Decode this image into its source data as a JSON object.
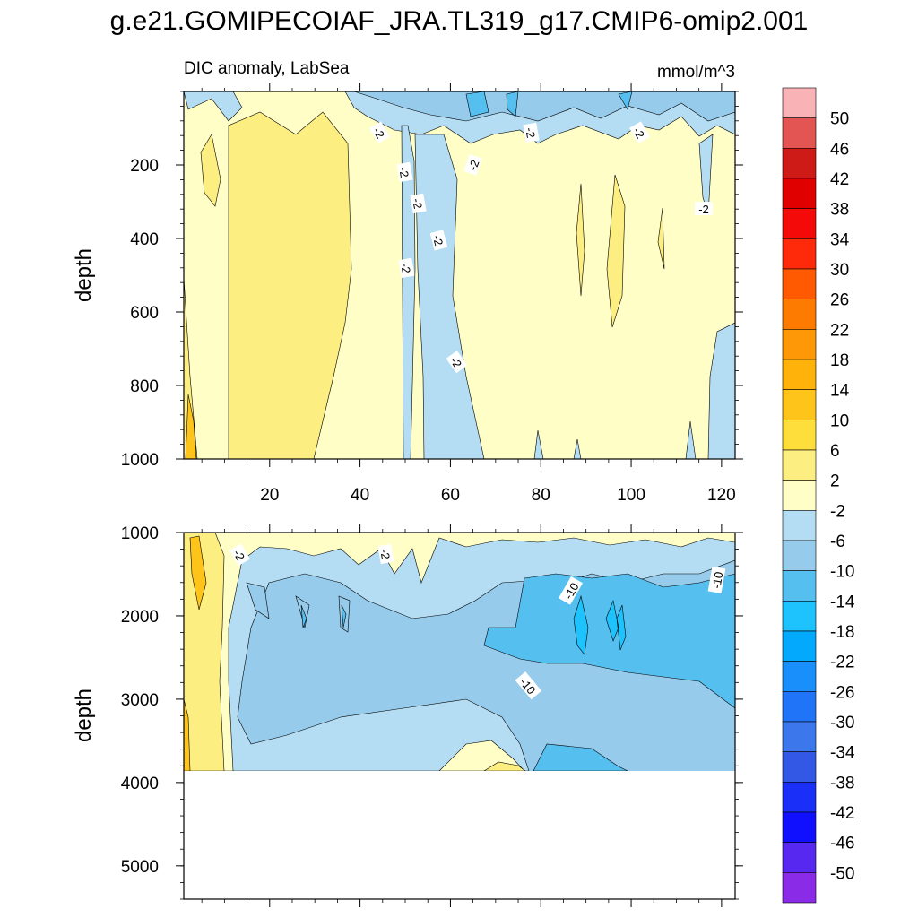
{
  "title": "g.e21.GOMIPECOIAF_JRA.TL319_g17.CMIP6-omip2.001",
  "chart_data": [
    {
      "type": "contour",
      "panel": "upper",
      "subtitle_left": "DIC anomaly, LabSea",
      "subtitle_right": "mmol/m^3",
      "ylabel": "depth",
      "xlim": [
        1,
        123
      ],
      "ylim": [
        1000,
        0
      ],
      "xticks": [
        "20",
        "40",
        "60",
        "80",
        "100",
        "120"
      ],
      "xtick_values": [
        20,
        40,
        60,
        80,
        100,
        120
      ],
      "yticks": [
        "200",
        "400",
        "600",
        "800",
        "1000"
      ],
      "ytick_values": [
        200,
        400,
        600,
        800,
        1000
      ],
      "contour_labels": [
        "-2",
        "-2",
        "-2",
        "-2",
        "-2",
        "-2",
        "-2",
        "-2",
        "-2",
        "-2"
      ]
    },
    {
      "type": "contour",
      "panel": "lower",
      "ylabel": "depth",
      "xlim": [
        1,
        123
      ],
      "ylim": [
        5400,
        1000
      ],
      "yticks": [
        "1000",
        "2000",
        "3000",
        "4000",
        "5000"
      ],
      "ytick_values": [
        1000,
        2000,
        3000,
        4000,
        5000
      ],
      "data_bottom_depth": 3870,
      "contour_labels": [
        "-2",
        "-2",
        "-10",
        "-10",
        "-10"
      ]
    }
  ],
  "colorbar": {
    "levels": [
      "50",
      "46",
      "42",
      "38",
      "34",
      "30",
      "26",
      "22",
      "18",
      "14",
      "10",
      "6",
      "2",
      "-2",
      "-6",
      "-10",
      "-14",
      "-18",
      "-22",
      "-26",
      "-30",
      "-34",
      "-38",
      "-42",
      "-46",
      "-50"
    ],
    "colors": [
      "#f9b3b7",
      "#e25553",
      "#cf1b18",
      "#e10000",
      "#f50a0a",
      "#ff2a0a",
      "#ff5a02",
      "#fe7b02",
      "#fe9806",
      "#feb20a",
      "#fec41a",
      "#fede3a",
      "#fdee82",
      "#fefec6",
      "#b4ddf3",
      "#96cbec",
      "#55c0f0",
      "#1ec2fc",
      "#03a9fd",
      "#198ffb",
      "#1f74f7",
      "#3c78eb",
      "#3458e6",
      "#1a30f8",
      "#1010fe",
      "#5628f0",
      "#8a2be8"
    ]
  }
}
